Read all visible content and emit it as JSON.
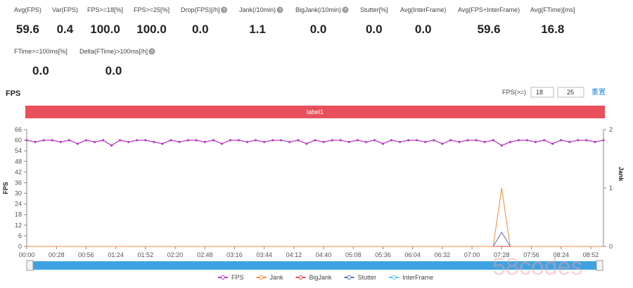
{
  "metrics": [
    {
      "label": "Avg(FPS)",
      "value": "59.6",
      "help": false
    },
    {
      "label": "Var(FPS)",
      "value": "0.4",
      "help": false
    },
    {
      "label": "FPS>=18[%]",
      "value": "100.0",
      "help": false
    },
    {
      "label": "FPS>=25[%]",
      "value": "100.0",
      "help": false
    },
    {
      "label": "Drop(FPS)[/h]",
      "value": "0.0",
      "help": true
    },
    {
      "label": "Jank(/10min)",
      "value": "1.1",
      "help": true
    },
    {
      "label": "BigJank(/10min)",
      "value": "0.0",
      "help": true
    },
    {
      "label": "Stutter[%]",
      "value": "0.0",
      "help": false
    },
    {
      "label": "Avg(InterFrame)",
      "value": "0.0",
      "help": false
    },
    {
      "label": "Avg(FPS+InterFrame)",
      "value": "59.6",
      "help": false
    },
    {
      "label": "Avg(FTime)[ms]",
      "value": "16.8",
      "help": false
    },
    {
      "label": "FTime>=100ms[%]",
      "value": "0.0",
      "help": false
    },
    {
      "label": "Delta(FTime)>100ms[/h]",
      "value": "0.0",
      "help": true
    }
  ],
  "fps_filter": {
    "label": "FPS(>=)",
    "inputs": [
      "18",
      "25"
    ],
    "reset": "重置"
  },
  "band_label": "label1",
  "watermark": "58codes",
  "chart_data": {
    "type": "line",
    "title": "FPS",
    "y_label": "FPS",
    "y2_label": "Jank",
    "x": [
      0,
      8,
      16,
      24,
      32,
      40,
      48,
      56,
      64,
      72,
      80,
      88,
      96,
      104,
      112,
      120,
      128,
      136,
      144,
      152,
      160,
      168,
      176,
      184,
      192,
      200,
      208,
      216,
      224,
      232,
      240,
      248,
      256,
      264,
      272,
      280,
      288,
      296,
      304,
      312,
      320,
      328,
      336,
      344,
      352,
      360,
      368,
      376,
      384,
      392,
      400,
      408,
      416,
      424,
      432,
      440,
      448,
      456,
      464,
      472,
      480,
      488,
      496,
      504,
      512,
      520,
      528,
      536,
      544
    ],
    "xlim": [
      0,
      544
    ],
    "xticks": [
      {
        "value": 0,
        "label": "00:00"
      },
      {
        "value": 28,
        "label": "00:28"
      },
      {
        "value": 56,
        "label": "00:56"
      },
      {
        "value": 84,
        "label": "01:24"
      },
      {
        "value": 112,
        "label": "01:52"
      },
      {
        "value": 140,
        "label": "02:20"
      },
      {
        "value": 168,
        "label": "02:48"
      },
      {
        "value": 196,
        "label": "03:16"
      },
      {
        "value": 224,
        "label": "03:44"
      },
      {
        "value": 252,
        "label": "04:12"
      },
      {
        "value": 280,
        "label": "04:40"
      },
      {
        "value": 308,
        "label": "05:08"
      },
      {
        "value": 336,
        "label": "05:36"
      },
      {
        "value": 364,
        "label": "06:04"
      },
      {
        "value": 392,
        "label": "06:32"
      },
      {
        "value": 420,
        "label": "07:00"
      },
      {
        "value": 448,
        "label": "07:28"
      },
      {
        "value": 476,
        "label": "07:56"
      },
      {
        "value": 504,
        "label": "08:24"
      },
      {
        "value": 532,
        "label": "08:52"
      }
    ],
    "ylim": [
      0,
      66
    ],
    "yticks": [
      0,
      6,
      12,
      18,
      24,
      30,
      36,
      42,
      48,
      54,
      60,
      66
    ],
    "y2lim": [
      0,
      2
    ],
    "y2ticks": [
      0,
      1,
      2
    ],
    "series": [
      {
        "name": "FPS",
        "color": "#b93cc0",
        "values": [
          60,
          59,
          60,
          60,
          59,
          60,
          58,
          60,
          59,
          60,
          57,
          60,
          59,
          60,
          60,
          59,
          58,
          60,
          59,
          60,
          60,
          59,
          60,
          58,
          60,
          60,
          59,
          60,
          59,
          60,
          60,
          59,
          60,
          58,
          60,
          59,
          60,
          60,
          59,
          60,
          59,
          60,
          58,
          60,
          59,
          60,
          60,
          59,
          60,
          58,
          60,
          59,
          60,
          60,
          59,
          60,
          57,
          59,
          60,
          60,
          59,
          60,
          58,
          60,
          59,
          60,
          60,
          59,
          60
        ]
      },
      {
        "name": "Jank",
        "color": "#f08a3c",
        "axis": "y2",
        "values": [
          0,
          0,
          0,
          0,
          0,
          0,
          0,
          0,
          0,
          0,
          0,
          0,
          0,
          0,
          0,
          0,
          0,
          0,
          0,
          0,
          0,
          0,
          0,
          0,
          0,
          0,
          0,
          0,
          0,
          0,
          0,
          0,
          0,
          0,
          0,
          0,
          0,
          0,
          0,
          0,
          0,
          0,
          0,
          0,
          0,
          0,
          0,
          0,
          0,
          0,
          0,
          0,
          0,
          0,
          0,
          0,
          1,
          0,
          0,
          0,
          0,
          0,
          0,
          0,
          0,
          0,
          0,
          0,
          0
        ]
      },
      {
        "name": "BigJank",
        "color": "#e0464e",
        "axis": "y2",
        "values": [
          0,
          0,
          0,
          0,
          0,
          0,
          0,
          0,
          0,
          0,
          0,
          0,
          0,
          0,
          0,
          0,
          0,
          0,
          0,
          0,
          0,
          0,
          0,
          0,
          0,
          0,
          0,
          0,
          0,
          0,
          0,
          0,
          0,
          0,
          0,
          0,
          0,
          0,
          0,
          0,
          0,
          0,
          0,
          0,
          0,
          0,
          0,
          0,
          0,
          0,
          0,
          0,
          0,
          0,
          0,
          0,
          0,
          0,
          0,
          0,
          0,
          0,
          0,
          0,
          0,
          0,
          0,
          0,
          0
        ]
      },
      {
        "name": "Stutter",
        "color": "#5470c6",
        "values": [
          0,
          0,
          0,
          0,
          0,
          0,
          0,
          0,
          0,
          0,
          0,
          0,
          0,
          0,
          0,
          0,
          0,
          0,
          0,
          0,
          0,
          0,
          0,
          0,
          0,
          0,
          0,
          0,
          0,
          0,
          0,
          0,
          0,
          0,
          0,
          0,
          0,
          0,
          0,
          0,
          0,
          0,
          0,
          0,
          0,
          0,
          0,
          0,
          0,
          0,
          0,
          0,
          0,
          0,
          0,
          0,
          8,
          0,
          0,
          0,
          0,
          0,
          0,
          0,
          0,
          0,
          0,
          0,
          0
        ]
      },
      {
        "name": "InterFrame",
        "color": "#57c7e3",
        "values": [
          0,
          0,
          0,
          0,
          0,
          0,
          0,
          0,
          0,
          0,
          0,
          0,
          0,
          0,
          0,
          0,
          0,
          0,
          0,
          0,
          0,
          0,
          0,
          0,
          0,
          0,
          0,
          0,
          0,
          0,
          0,
          0,
          0,
          0,
          0,
          0,
          0,
          0,
          0,
          0,
          0,
          0,
          0,
          0,
          0,
          0,
          0,
          0,
          0,
          0,
          0,
          0,
          0,
          0,
          0,
          0,
          0,
          0,
          0,
          0,
          0,
          0,
          0,
          0,
          0,
          0,
          0,
          0,
          0
        ]
      }
    ]
  }
}
